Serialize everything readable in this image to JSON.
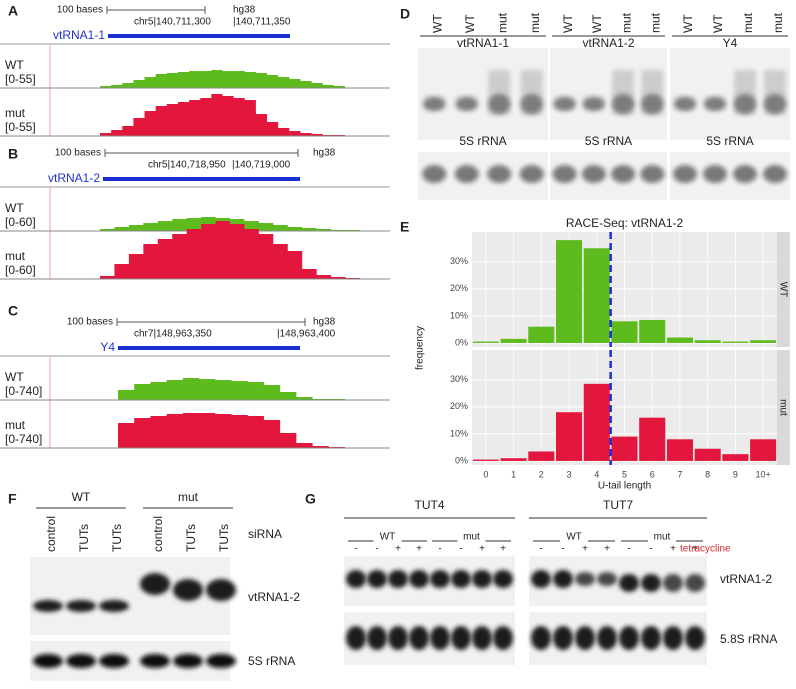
{
  "genome_tracks": [
    {
      "letter": "A",
      "scale": "100 bases",
      "assembly": "hg38",
      "coord_left": "chr5|140,711,300",
      "coord_right": "|140,711,350",
      "gene": "vtRNA1-1",
      "tracks": [
        {
          "name": "WT",
          "range": "[0-55]"
        },
        {
          "name": "mut",
          "range": "[0-55]"
        }
      ]
    },
    {
      "letter": "B",
      "scale": "100 bases",
      "assembly": "hg38",
      "coord_left": "chr5|140,718,950",
      "coord_right": "|140,719,000",
      "gene": "vtRNA1-2",
      "tracks": [
        {
          "name": "WT",
          "range": "[0-60]"
        },
        {
          "name": "mut",
          "range": "[0-60]"
        }
      ]
    },
    {
      "letter": "C",
      "scale": "100 bases",
      "assembly": "hg38",
      "coord_left": "chr7|148,963,350",
      "coord_right": "|148,963,400",
      "gene": "Y4",
      "tracks": [
        {
          "name": "WT",
          "range": "[0-740]"
        },
        {
          "name": "mut",
          "range": "[0-740]"
        }
      ]
    }
  ],
  "northern_d": {
    "letter": "D",
    "lanes": [
      "WT",
      "WT",
      "mut",
      "mut",
      "WT",
      "WT",
      "mut",
      "mut",
      "WT",
      "WT",
      "mut",
      "mut"
    ],
    "probes": [
      "vtRNA1-1",
      "vtRNA1-2",
      "Y4"
    ],
    "loading": [
      "5S rRNA",
      "5S rRNA",
      "5S rRNA"
    ]
  },
  "chart_data": {
    "type": "bar",
    "letter": "E",
    "title": "RACE-Seq: vtRNA1-2",
    "x_label": "U-tail length",
    "y_label": "frequency",
    "categories": [
      "0",
      "1",
      "2",
      "3",
      "4",
      "5",
      "6",
      "7",
      "8",
      "9",
      "10+"
    ],
    "series": [
      {
        "name": "WT",
        "color": "#5dbb1e",
        "values": [
          0.5,
          1.5,
          6,
          38,
          35,
          8,
          8.5,
          2,
          1,
          0.5,
          1
        ]
      },
      {
        "name": "mut",
        "color": "#e3173d",
        "values": [
          0.5,
          1,
          3.5,
          18,
          28.5,
          9,
          16,
          8,
          4.5,
          2.5,
          8
        ]
      }
    ],
    "vline": 4.5,
    "ylim": [
      -1.5,
      41
    ],
    "yticks": [
      {
        "value": 0,
        "label": "0%"
      },
      {
        "value": 10,
        "label": "10%"
      },
      {
        "value": 20,
        "label": "20%"
      },
      {
        "value": 30,
        "label": "30%"
      }
    ],
    "grid": true
  },
  "northern_f": {
    "letter": "F",
    "groups": [
      "WT",
      "mut"
    ],
    "lanes": [
      "control",
      "TUTs",
      "TUTs",
      "control",
      "TUTs",
      "TUTs"
    ],
    "lane_header": "siRNA",
    "probe": "vtRNA1-2",
    "loading": "5S rRNA"
  },
  "northern_g": {
    "letter": "G",
    "panels": [
      "TUT4",
      "TUT7"
    ],
    "groups": [
      "WT",
      "mut",
      "WT",
      "mut"
    ],
    "treatment": [
      "-",
      "-",
      "+",
      "+",
      "-",
      "-",
      "+",
      "+",
      "-",
      "-",
      "+",
      "+",
      "-",
      "-",
      "+",
      "+"
    ],
    "treatment_label": "tetracycline",
    "probe": "vtRNA1-2",
    "loading": "5.8S rRNA"
  }
}
